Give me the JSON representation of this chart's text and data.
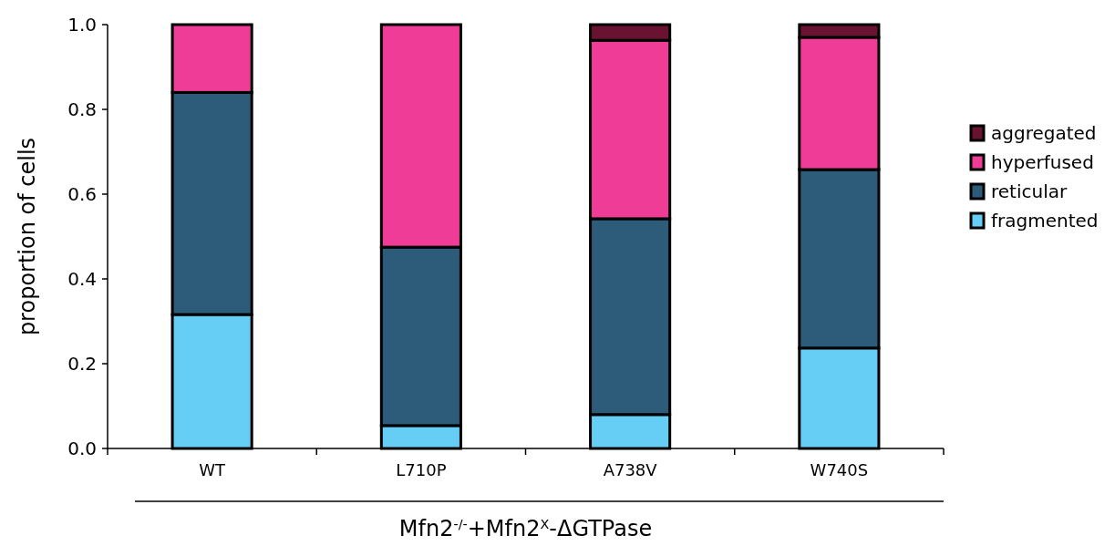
{
  "chart_data": {
    "type": "bar",
    "stacked": true,
    "ylabel": "proportion of cells",
    "xlabel": "Mfn2$^{-/-}$+Mfn2$^{X}$-ΔGTPase",
    "categories": [
      "WT",
      "L710P",
      "A738V",
      "W740S"
    ],
    "series": [
      {
        "name": "fragmented",
        "color": "#66cdf4",
        "values": [
          0.316,
          0.054,
          0.08,
          0.237
        ]
      },
      {
        "name": "reticular",
        "color": "#2d5c7a",
        "values": [
          0.524,
          0.421,
          0.462,
          0.421
        ]
      },
      {
        "name": "hyperfused",
        "color": "#ef3d97",
        "values": [
          0.16,
          0.525,
          0.421,
          0.312
        ]
      },
      {
        "name": "aggregated",
        "color": "#6a1232",
        "values": [
          0,
          0,
          0.037,
          0.03
        ]
      }
    ],
    "ylim": [
      0,
      1
    ],
    "yticks": [
      {
        "value": 0,
        "label": "0.0"
      },
      {
        "value": 0.2,
        "label": "0.2"
      },
      {
        "value": 0.4,
        "label": "0.4"
      },
      {
        "value": 0.6,
        "label": "0.6"
      },
      {
        "value": 0.8,
        "label": "0.8"
      },
      {
        "value": 1,
        "label": "1.0"
      }
    ],
    "legend": "right",
    "grid": false
  }
}
